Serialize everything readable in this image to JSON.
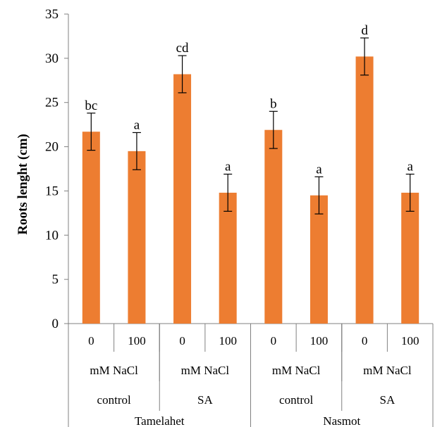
{
  "chart_data": {
    "type": "bar",
    "ylabel": "Roots lenght (cm)",
    "ylim": [
      0,
      35
    ],
    "yticks": [
      0,
      5,
      10,
      15,
      20,
      25,
      30,
      35
    ],
    "grid": false,
    "legend": "none",
    "bar_color": "#ED7D31",
    "categories": [
      "0",
      "100",
      "0",
      "100",
      "0",
      "100",
      "0",
      "100"
    ],
    "values": [
      21.7,
      19.5,
      28.2,
      14.8,
      21.9,
      14.5,
      30.2,
      14.8
    ],
    "errors": [
      2.1,
      2.1,
      2.1,
      2.1,
      2.1,
      2.1,
      2.1,
      2.1
    ],
    "letters": [
      "bc",
      "a",
      "cd",
      "a",
      "b",
      "a",
      "d",
      "a"
    ],
    "group_levels": [
      [
        "mM NaCl",
        "mM NaCl",
        "mM NaCl",
        "mM NaCl"
      ],
      [
        "control",
        "SA",
        "control",
        "SA"
      ],
      [
        "Tamelahet",
        "Nasmot"
      ]
    ]
  }
}
